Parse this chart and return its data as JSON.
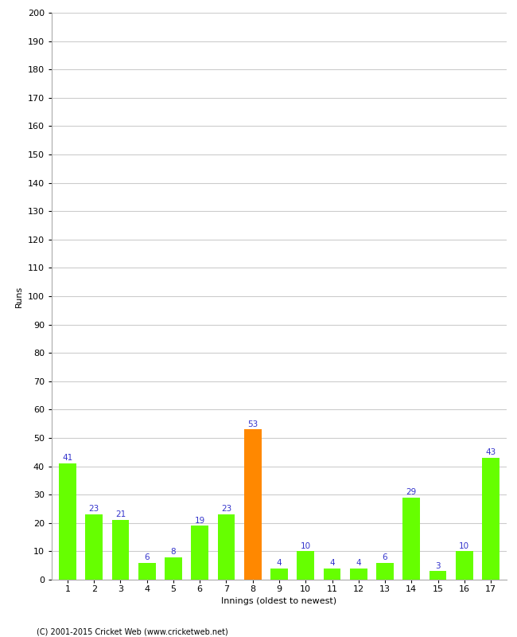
{
  "xlabel": "Innings (oldest to newest)",
  "ylabel": "Runs",
  "categories": [
    1,
    2,
    3,
    4,
    5,
    6,
    7,
    8,
    9,
    10,
    11,
    12,
    13,
    14,
    15,
    16,
    17
  ],
  "values": [
    41,
    23,
    21,
    6,
    8,
    19,
    23,
    53,
    4,
    10,
    4,
    4,
    6,
    29,
    3,
    10,
    43
  ],
  "bar_colors": [
    "#66ff00",
    "#66ff00",
    "#66ff00",
    "#66ff00",
    "#66ff00",
    "#66ff00",
    "#66ff00",
    "#ff8800",
    "#66ff00",
    "#66ff00",
    "#66ff00",
    "#66ff00",
    "#66ff00",
    "#66ff00",
    "#66ff00",
    "#66ff00",
    "#66ff00"
  ],
  "label_color": "#3333cc",
  "ylim": [
    0,
    200
  ],
  "ytick_step": 10,
  "background_color": "#ffffff",
  "grid_color": "#cccccc",
  "footer": "(C) 2001-2015 Cricket Web (www.cricketweb.net)",
  "label_fontsize": 7.5,
  "axis_tick_fontsize": 8,
  "xlabel_fontsize": 8,
  "ylabel_fontsize": 8,
  "border_color": "#aaaaaa"
}
